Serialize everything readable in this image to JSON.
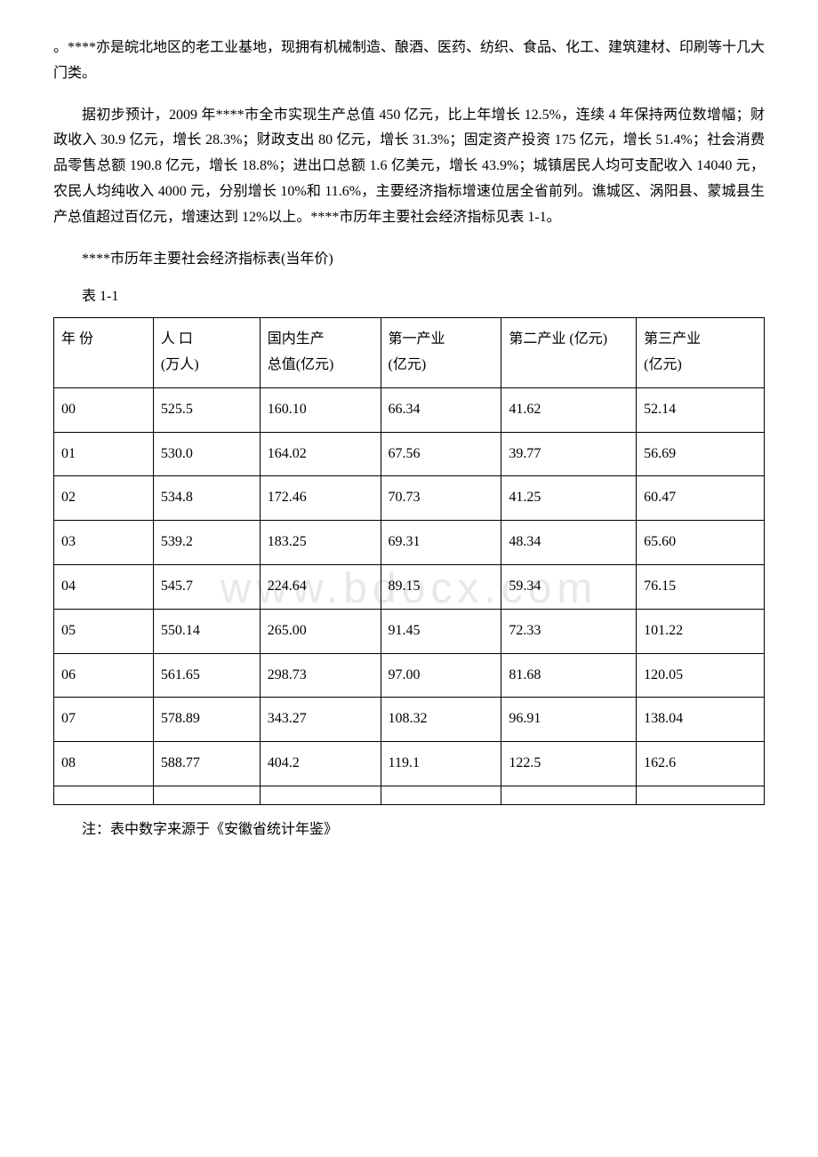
{
  "paragraphs": {
    "p1": "。****亦是皖北地区的老工业基地，现拥有机械制造、酿酒、医药、纺织、食品、化工、建筑建材、印刷等十几大门类。",
    "p2": "据初步预计，2009 年****市全市实现生产总值 450 亿元，比上年增长 12.5%，连续 4 年保持两位数增幅；财政收入 30.9 亿元，增长 28.3%；财政支出 80 亿元，增长 31.3%；固定资产投资 175 亿元，增长 51.4%；社会消费品零售总额 190.8 亿元，增长 18.8%；进出口总额 1.6 亿美元，增长 43.9%；城镇居民人均可支配收入 14040 元，农民人均纯收入 4000 元，分别增长 10%和 11.6%，主要经济指标增速位居全省前列。谯城区、涡阳县、蒙城县生产总值超过百亿元，增速达到 12%以上。****市历年主要社会经济指标见表 1-1。",
    "caption": "****市历年主要社会经济指标表(当年价)",
    "tableLabel": "表 1-1",
    "footnote": "注：表中数字来源于《安徽省统计年鉴》"
  },
  "table": {
    "headers": {
      "c0": "年 份",
      "c1": "人 口\n(万人)",
      "c2": "国内生产\n总值(亿元)",
      "c3": "第一产业\n(亿元)",
      "c4": "第二产业 (亿元)",
      "c5": "第三产业\n(亿元)"
    },
    "rows": [
      {
        "c0": "00",
        "c1": "525.5",
        "c2": "160.10",
        "c3": "66.34",
        "c4": "41.62",
        "c5": "52.14"
      },
      {
        "c0": "01",
        "c1": "530.0",
        "c2": "164.02",
        "c3": "67.56",
        "c4": "39.77",
        "c5": "56.69"
      },
      {
        "c0": "02",
        "c1": "534.8",
        "c2": "172.46",
        "c3": "70.73",
        "c4": "41.25",
        "c5": "60.47"
      },
      {
        "c0": "03",
        "c1": "539.2",
        "c2": "183.25",
        "c3": "69.31",
        "c4": "48.34",
        "c5": "65.60"
      },
      {
        "c0": "04",
        "c1": "545.7",
        "c2": "224.64",
        "c3": "89.15",
        "c4": "59.34",
        "c5": "76.15"
      },
      {
        "c0": "05",
        "c1": "550.14",
        "c2": "265.00",
        "c3": "91.45",
        "c4": "72.33",
        "c5": "101.22"
      },
      {
        "c0": "06",
        "c1": "561.65",
        "c2": "298.73",
        "c3": "97.00",
        "c4": "81.68",
        "c5": "120.05"
      },
      {
        "c0": "07",
        "c1": "578.89",
        "c2": "343.27",
        "c3": "108.32",
        "c4": "96.91",
        "c5": "138.04"
      },
      {
        "c0": "08",
        "c1": "588.77",
        "c2": "404.2",
        "c3": "119.1",
        "c4": "122.5",
        "c5": "162.6"
      },
      {
        "c0": "",
        "c1": "",
        "c2": "",
        "c3": "",
        "c4": "",
        "c5": ""
      }
    ],
    "colWidths": [
      "14%",
      "15%",
      "17%",
      "17%",
      "19%",
      "18%"
    ]
  },
  "watermark": "www.bdocx.com"
}
